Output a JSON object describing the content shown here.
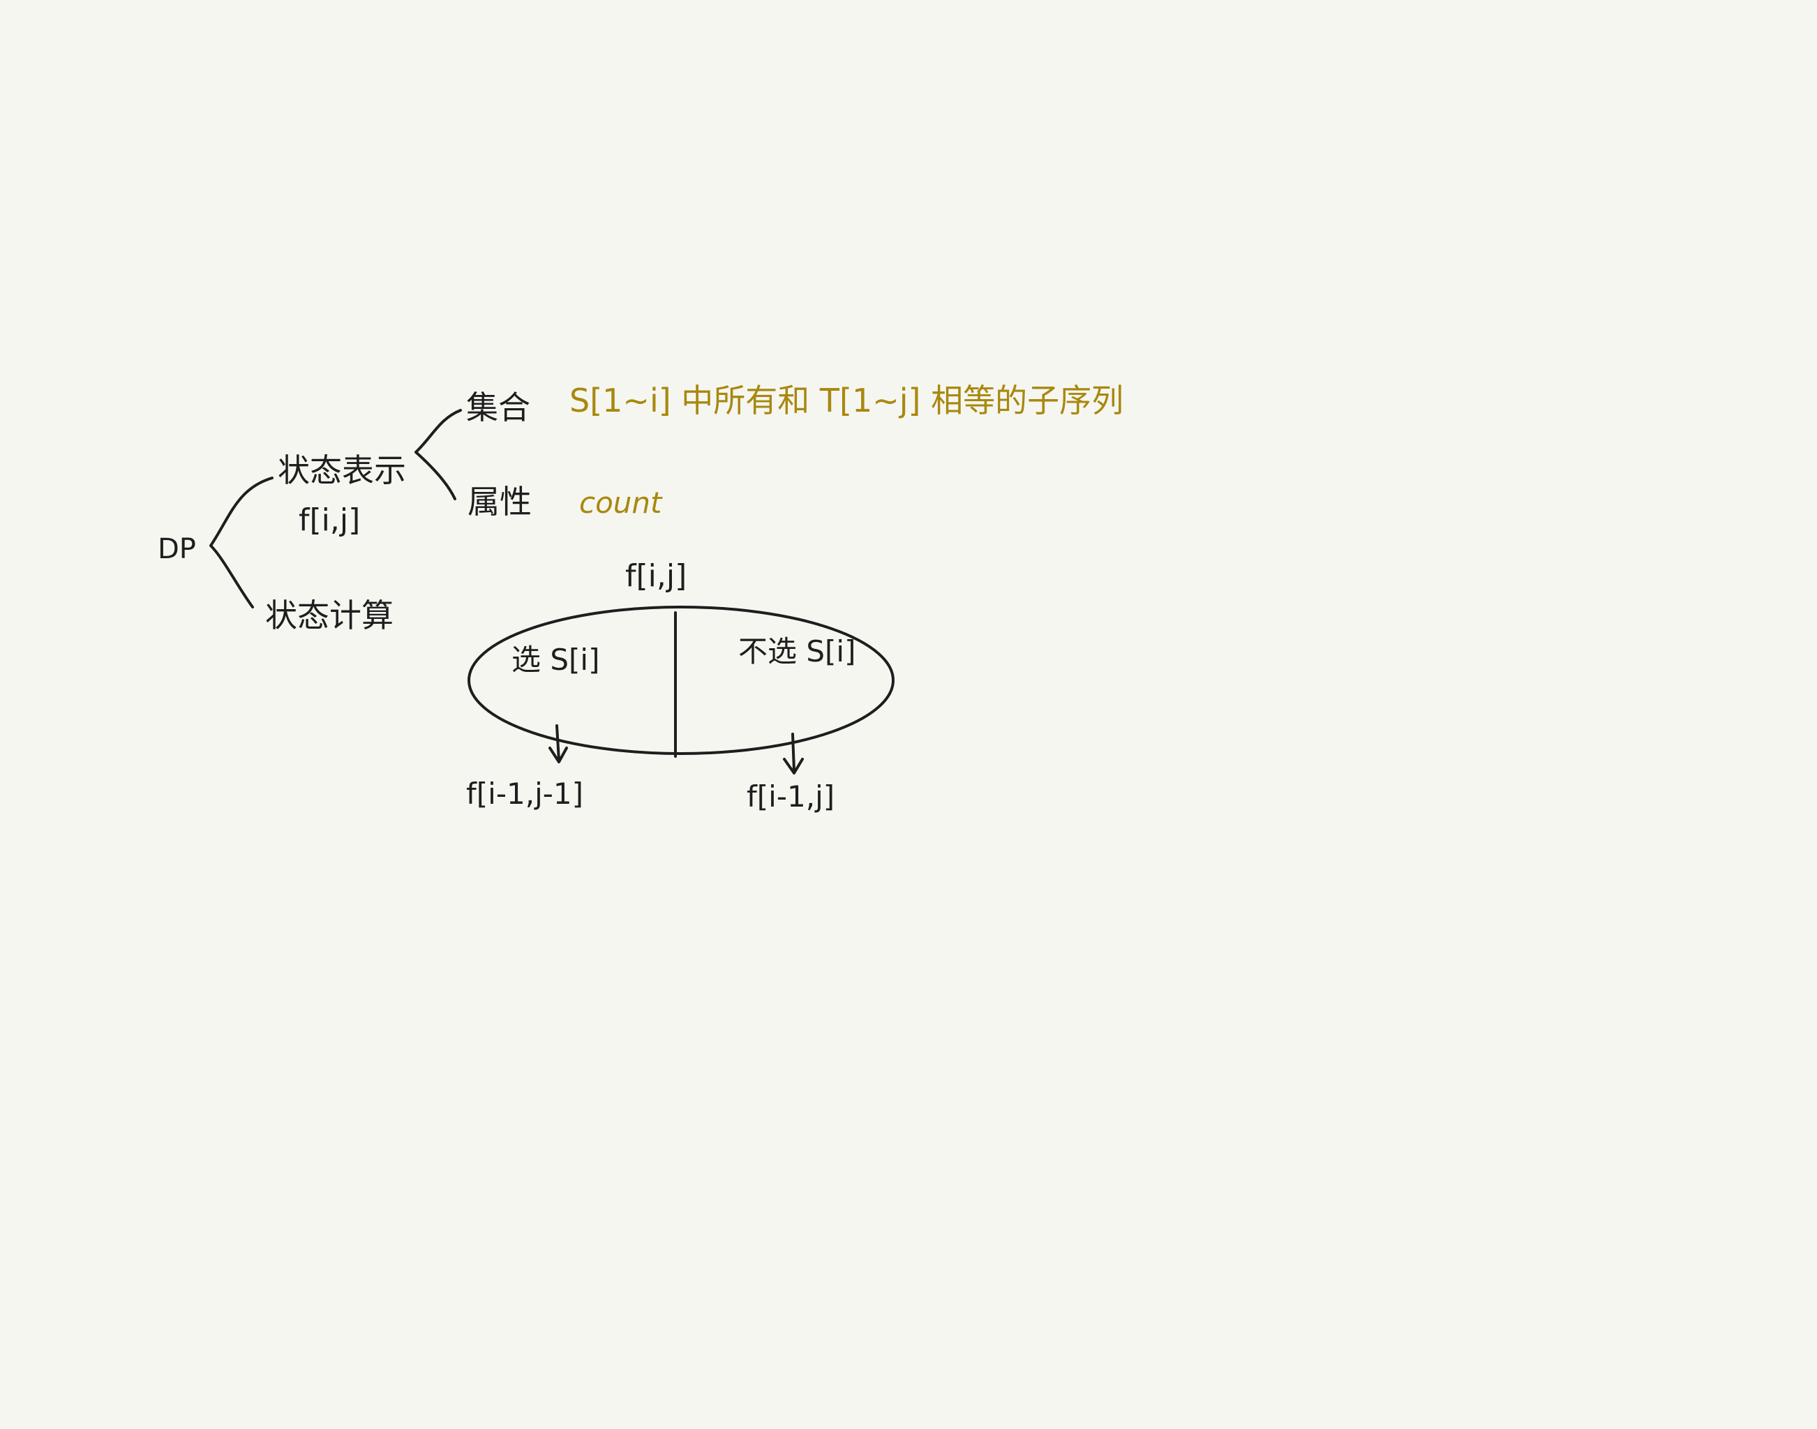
{
  "colors": {
    "background": "#f6f6f1",
    "ink": "#1e1e1e",
    "accent": "#a8880e"
  },
  "labels": {
    "root": "DP",
    "state_representation": "状态表示",
    "state_function": "f[i,j]",
    "state_computation": "状态计算",
    "set": "集合",
    "set_description": "S[1~i] 中所有和 T[1~j] 相等的子序列",
    "attribute": "属性",
    "attribute_value": "count"
  },
  "partition": {
    "title": "f[i,j]",
    "left_label": "选 S[i]",
    "right_label": "不选 S[i]",
    "left_result": "f[i-1,j-1]",
    "right_result": "f[i-1,j]"
  }
}
